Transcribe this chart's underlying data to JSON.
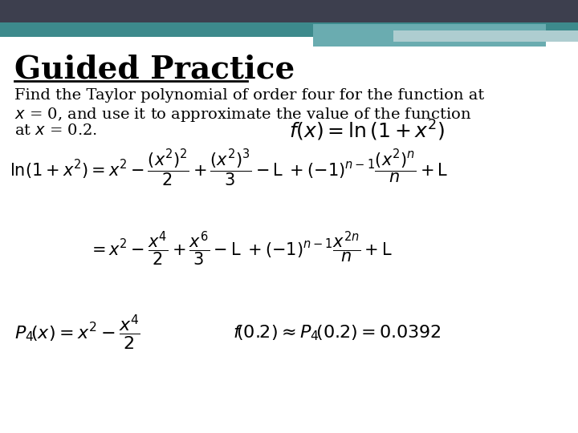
{
  "bg_color": "#ffffff",
  "title": "Guided Practice",
  "title_color": "#000000",
  "title_fontsize": 28,
  "body_fontsize": 14,
  "header_dark_color": "#3d3f4e",
  "header_teal_color": "#3d8a8c",
  "header_light_color": "#aecdd0",
  "formula1": "$f\\left(x\\right)=\\ln\\left(1+x^{2}\\right)$",
  "formula2": "$\\ln\\!\\left(1+x^{2}\\right)=x^{2}-\\dfrac{\\left(x^{2}\\right)^{2}}{2}+\\dfrac{\\left(x^{2}\\right)^{3}}{3}-\\mathrm{L}\\;+(-1)^{n-1}\\dfrac{\\left(x^{2}\\right)^{n}}{n}+\\mathrm{L}$",
  "formula3": "$=x^{2}-\\dfrac{x^{4}}{2}+\\dfrac{x^{6}}{3}-\\mathrm{L}\\;+(-1)^{n-1}\\dfrac{x^{2n}}{n}+\\mathrm{L}$",
  "formula4": "$P_{4}\\!\\left(x\\right)=x^{2}-\\dfrac{x^{4}}{2}$",
  "formula5": "$f\\!\\left(0.2\\right)\\approx P_{4}\\!\\left(0.2\\right)=0.0392$",
  "formula2_fontsize": 15,
  "formula3_fontsize": 15,
  "formula4_fontsize": 16,
  "formula5_fontsize": 16,
  "formula1_fontsize": 18
}
